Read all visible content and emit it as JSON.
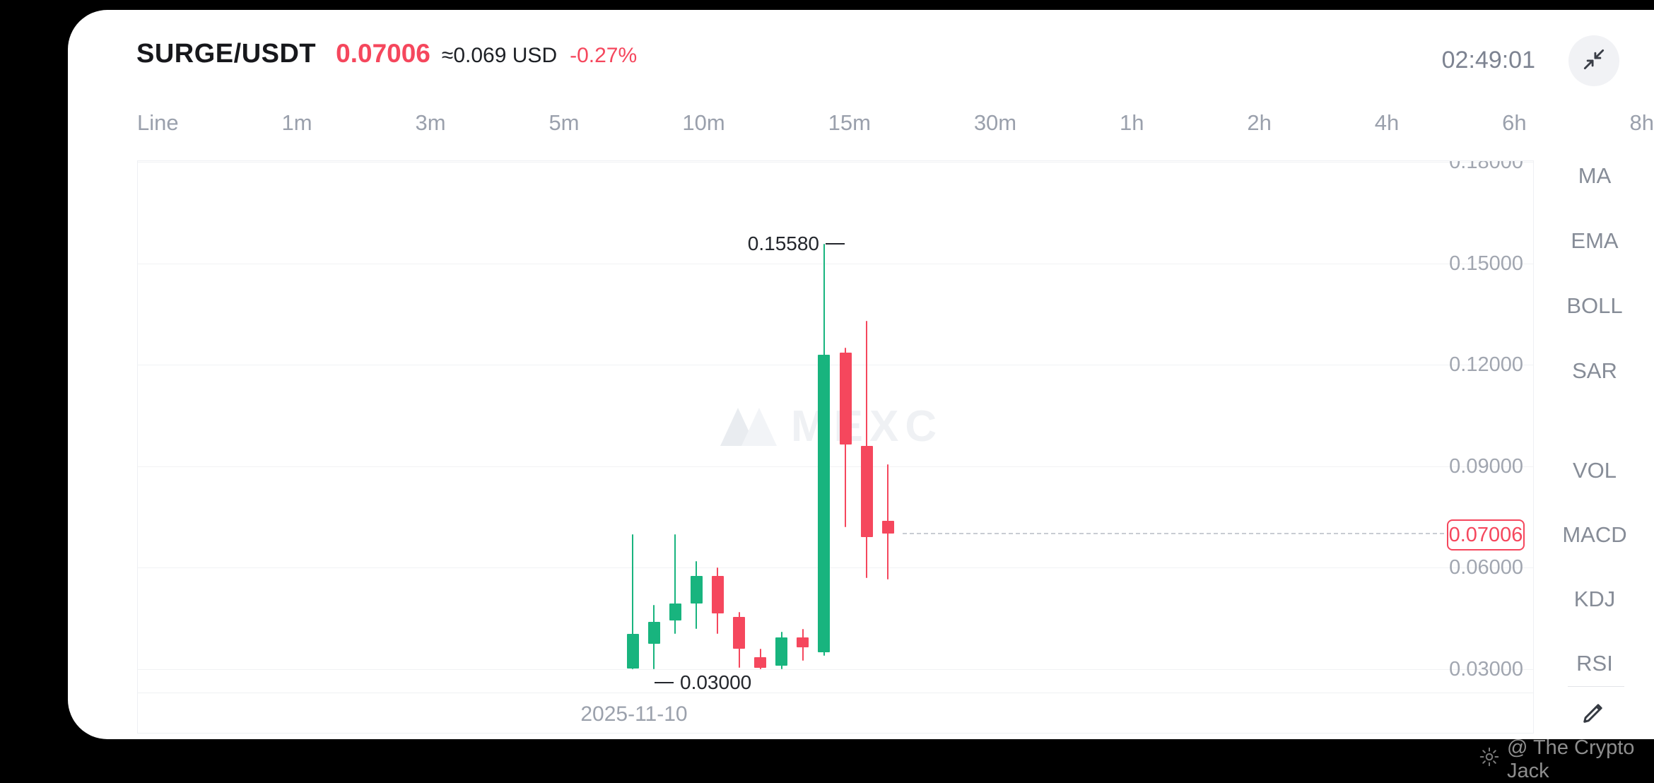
{
  "header": {
    "pair": "SURGE/USDT",
    "price": "0.07006",
    "approx": "≈0.069 USD",
    "change": "-0.27%",
    "time": "02:49:01"
  },
  "timeframes": {
    "items": [
      "Line",
      "1m",
      "3m",
      "5m",
      "10m",
      "15m",
      "30m",
      "1h",
      "2h",
      "4h",
      "6h",
      "8h"
    ]
  },
  "indicators": {
    "main": [
      "MA",
      "EMA",
      "BOLL",
      "SAR"
    ],
    "sub": [
      "VOL",
      "MACD",
      "KDJ",
      "RSI"
    ]
  },
  "chart_data": {
    "type": "candlestick",
    "pair": "SURGE/USDT",
    "date_label": "2025-11-10",
    "y_ticks": [
      "0.18000",
      "0.15000",
      "0.12000",
      "0.09000",
      "0.06000",
      "0.03000"
    ],
    "y_axis_range": [
      0.03,
      0.18
    ],
    "current_price": 0.07006,
    "current_price_label": "0.07006",
    "high_annotation": "0.15580",
    "high_value": 0.1558,
    "low_annotation": "0.03000",
    "low_value": 0.03,
    "up_color": "#18b47e",
    "down_color": "#f5475d",
    "candles": [
      {
        "o": 0.0302,
        "h": 0.07,
        "l": 0.03,
        "c": 0.0405
      },
      {
        "o": 0.0375,
        "h": 0.049,
        "l": 0.03,
        "c": 0.044
      },
      {
        "o": 0.0445,
        "h": 0.07,
        "l": 0.0405,
        "c": 0.0495
      },
      {
        "o": 0.0495,
        "h": 0.062,
        "l": 0.042,
        "c": 0.0575
      },
      {
        "o": 0.0575,
        "h": 0.06,
        "l": 0.0405,
        "c": 0.0465
      },
      {
        "o": 0.0455,
        "h": 0.047,
        "l": 0.0305,
        "c": 0.036
      },
      {
        "o": 0.0335,
        "h": 0.036,
        "l": 0.03,
        "c": 0.0305
      },
      {
        "o": 0.031,
        "h": 0.041,
        "l": 0.03,
        "c": 0.0395
      },
      {
        "o": 0.0395,
        "h": 0.042,
        "l": 0.0325,
        "c": 0.0365
      },
      {
        "o": 0.035,
        "h": 0.1558,
        "l": 0.034,
        "c": 0.123
      },
      {
        "o": 0.1235,
        "h": 0.125,
        "l": 0.072,
        "c": 0.0965
      },
      {
        "o": 0.096,
        "h": 0.133,
        "l": 0.057,
        "c": 0.069
      },
      {
        "o": 0.0738,
        "h": 0.0905,
        "l": 0.0565,
        "c": 0.0701
      }
    ]
  },
  "watermark": {
    "text": "MEXC"
  },
  "footer": {
    "credit": "@ The Crypto Jack"
  },
  "colors": {
    "red": "#f5475d",
    "green": "#18b47e"
  }
}
